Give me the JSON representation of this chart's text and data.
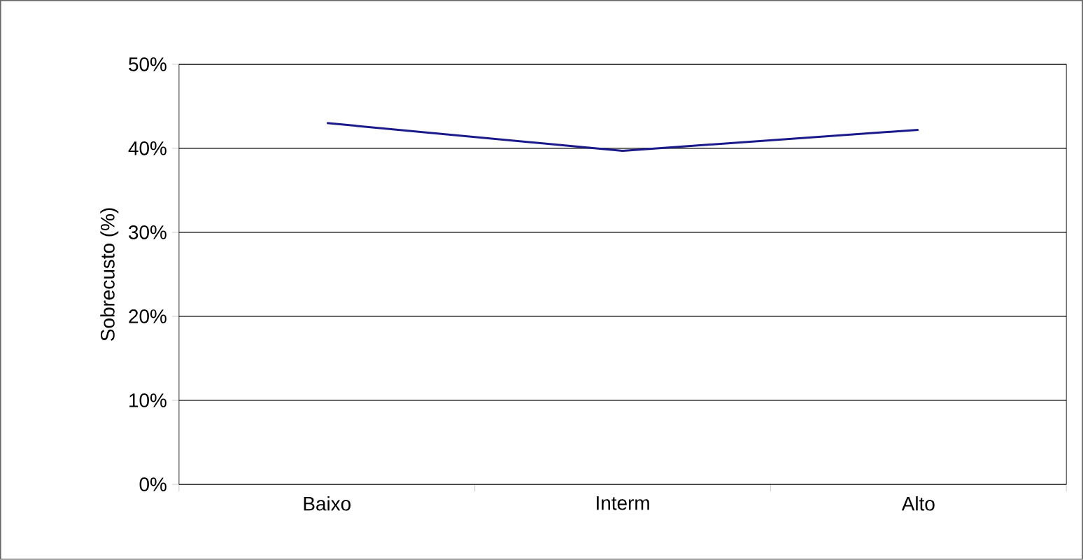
{
  "chart_data": {
    "type": "line",
    "ylabel": "Sobrecusto (%)",
    "categories": [
      "Baixo",
      "Interm",
      "Alto"
    ],
    "series": [
      {
        "color": "#1a1a8c",
        "values": [
          43.0,
          39.7,
          42.2
        ]
      }
    ],
    "ylim": [
      0,
      50
    ],
    "yticks": [
      {
        "value": 0,
        "label": "0%"
      },
      {
        "value": 10,
        "label": "10%"
      },
      {
        "value": 20,
        "label": "20%"
      },
      {
        "value": 30,
        "label": "30%"
      },
      {
        "value": 40,
        "label": "40%"
      },
      {
        "value": 50,
        "label": "50%"
      }
    ],
    "grid": "y",
    "marker": "none",
    "line_style": "solid"
  }
}
